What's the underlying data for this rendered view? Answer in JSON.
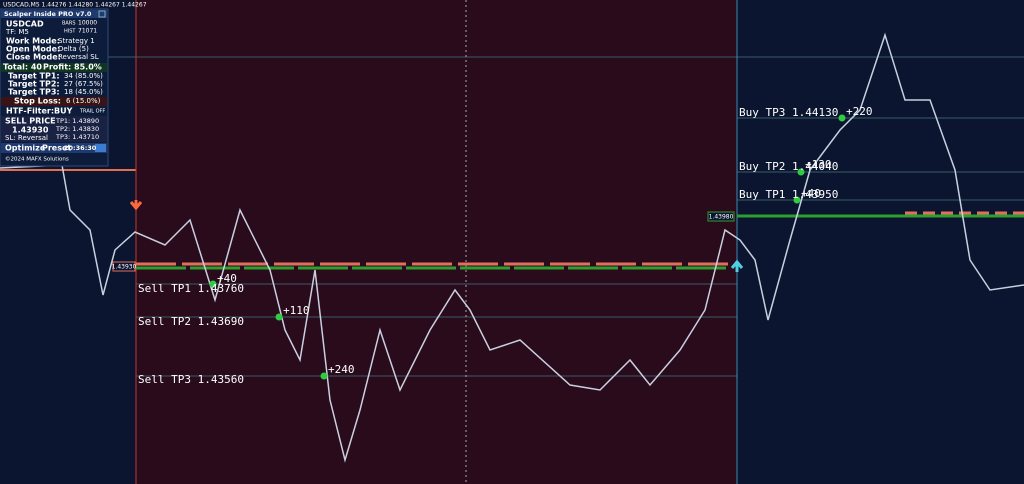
{
  "header": {
    "symbol_info": "USDCAD,M5  1.44276 1.44280 1.44267 1.44267"
  },
  "panel": {
    "title": "Scalper Inside PRO v7.0",
    "symbol": "USDCAD",
    "bars_label": "BARS",
    "bars": "10000",
    "timeframe": "TF: M5",
    "hist_label": "HIST",
    "hist": "71071",
    "work_mode_label": "Work Mode:",
    "work_mode": "Strategy 1",
    "open_mode_label": "Open Mode:",
    "open_mode": "Delta (5)",
    "close_mode_label": "Close Mode:",
    "close_mode": "Reversal SL",
    "total": "Total: 40",
    "profit": "Profit: 85.0%",
    "tp1_label": "Target TP1:",
    "tp1": "34 (85.0%)",
    "tp2_label": "Target TP2:",
    "tp2": "27 (67.5%)",
    "tp3_label": "Target TP3:",
    "tp3": "18 (45.0%)",
    "sl_label": "Stop Loss:",
    "sl": "6 (15.0%)",
    "htf_label": "HTF-Filter:",
    "htf": "BUY",
    "trail": "TRAIL OFF",
    "signal": "SELL PRICE",
    "signal_price": "1.43930",
    "sl_mode": "SL: Reversal",
    "sig_tp1": "TP1: 1.43890",
    "sig_tp2": "TP2: 1.43830",
    "sig_tp3": "TP3: 1.43710",
    "optimize": "Optimize",
    "preset": "Preset",
    "time": "20:36:30",
    "copyright": "©2024 MAFX Solutions"
  },
  "chart": {
    "sell_tp1": "Sell TP1 1.43760",
    "sell_tp2": "Sell TP2 1.43690",
    "sell_tp3": "Sell TP3 1.43560",
    "sell_pips1": "+40",
    "sell_pips2": "+110",
    "sell_pips3": "+240",
    "buy_tp1": "Buy TP1 1.43950",
    "buy_tp2": "Buy TP2 1.44040",
    "buy_tp3": "Buy TP3 1.44130",
    "buy_pips1": "+40",
    "buy_pips2": "+130",
    "buy_pips3": "+220",
    "sell_entry_tag": "1.43930",
    "buy_entry_tag": "1.43980"
  }
}
